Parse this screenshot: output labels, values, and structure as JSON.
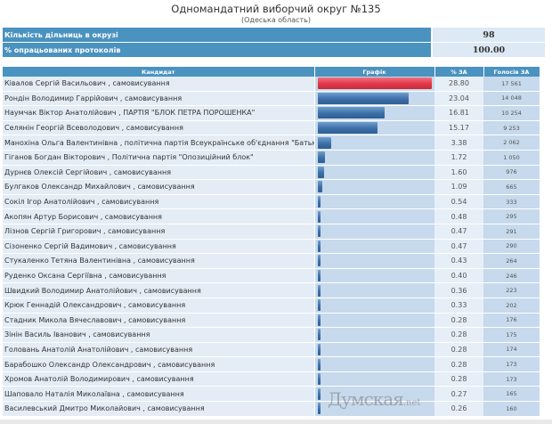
{
  "header": {
    "title": "Одномандатний виборчий округ №135",
    "subtitle": "(Одеська область)"
  },
  "info": [
    {
      "label": "Кількість дільниць в окрузі",
      "value": "98"
    },
    {
      "label": "% опрацьованих протоколів",
      "value": "100.00"
    }
  ],
  "table": {
    "columns": [
      "Кандидат",
      "Графік",
      "% ЗА",
      "Голосів ЗА"
    ],
    "rows": [
      {
        "name": "Ківалов Сергій Васильович , самовисування",
        "pct": "28.80",
        "votes": "17 561"
      },
      {
        "name": "Рондін Володимир Гаррійович , самовисування",
        "pct": "23.04",
        "votes": "14 048"
      },
      {
        "name": "Наумчак Віктор Анатолійович , ПАРТІЯ \"БЛОК ПЕТРА ПОРОШЕНКА\"",
        "pct": "16.81",
        "votes": "10 254"
      },
      {
        "name": "Селянін Георгій Всеволодович , самовисування",
        "pct": "15.17",
        "votes": "9 253"
      },
      {
        "name": "Манохіна Ольга Валентинівна , політична партія Всеукраїнське об'єднання \"Батьківщина\"",
        "pct": "3.38",
        "votes": "2 062"
      },
      {
        "name": "Гіганов Богдан Вікторович , Політична партія \"Опозиційний блок\"",
        "pct": "1.72",
        "votes": "1 050"
      },
      {
        "name": "Дурнєв Олексій Сергійович , самовисування",
        "pct": "1.60",
        "votes": "976"
      },
      {
        "name": "Булгаков Олександр Михайлович , самовисування",
        "pct": "1.09",
        "votes": "665"
      },
      {
        "name": "Сокіл Ігор Анатолійович , самовисування",
        "pct": "0.54",
        "votes": "333"
      },
      {
        "name": "Акопян Артур Борисович , самовисування",
        "pct": "0.48",
        "votes": "295"
      },
      {
        "name": "Лізнов Сергій Григорович , самовисування",
        "pct": "0.47",
        "votes": "291"
      },
      {
        "name": "Сізоненко Сергій Вадимович , самовисування",
        "pct": "0.47",
        "votes": "290"
      },
      {
        "name": "Стукаленко Тетяна Валентинівна , самовисування",
        "pct": "0.43",
        "votes": "264"
      },
      {
        "name": "Руденко Оксана Сергіївна , самовисування",
        "pct": "0.40",
        "votes": "246"
      },
      {
        "name": "Швидкий Володимир Анатолійович , самовисування",
        "pct": "0.36",
        "votes": "223"
      },
      {
        "name": "Крюк Геннадій Олександрович , самовисування",
        "pct": "0.33",
        "votes": "202"
      },
      {
        "name": "Стадник Микола Вячеславович , самовисування",
        "pct": "0.28",
        "votes": "176"
      },
      {
        "name": "Зінін Василь Іванович , самовисування",
        "pct": "0.28",
        "votes": "175"
      },
      {
        "name": "Головань Анатолій Анатолійович , самовисування",
        "pct": "0.28",
        "votes": "174"
      },
      {
        "name": "Барабошко Олександр Олександрович , самовисування",
        "pct": "0.28",
        "votes": "173"
      },
      {
        "name": "Хромов Анатолій Володимирович , самовисування",
        "pct": "0.28",
        "votes": "173"
      },
      {
        "name": "Шаповало Наталія Миколаївна , самовисування",
        "pct": "0.27",
        "votes": "165"
      },
      {
        "name": "Василевський Дмитро Миколайович , самовисування",
        "pct": "0.26",
        "votes": "160"
      }
    ]
  },
  "colors": {
    "header_blue": "#4a92bf",
    "lead_bar": "#e23848",
    "bar": "#3d6fa8"
  },
  "watermark": "Думская.net"
}
